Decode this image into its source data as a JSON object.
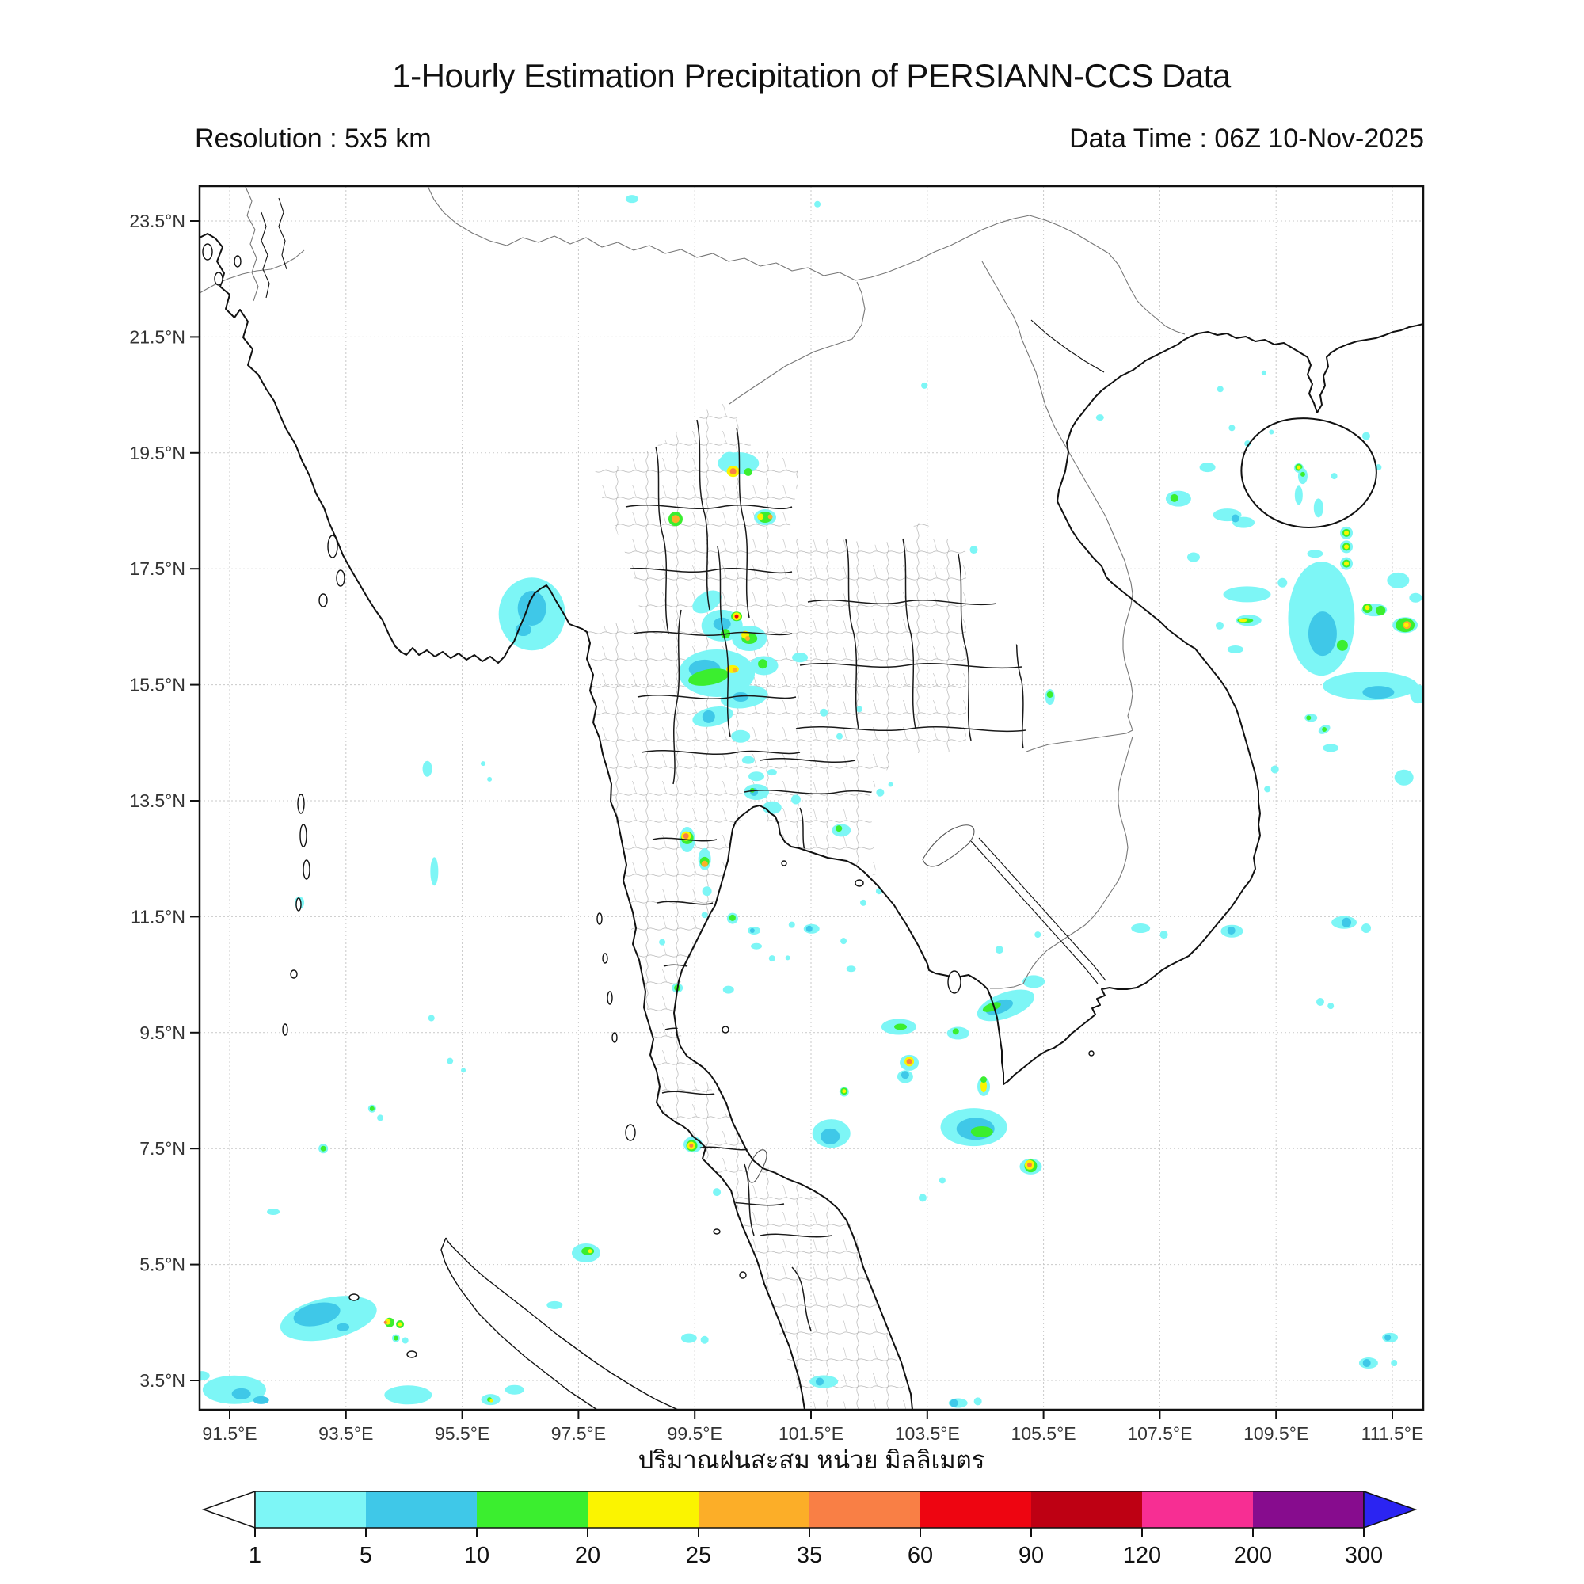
{
  "header": {
    "title": "1-Hourly Estimation Precipitation of PERSIANN-CCS Data",
    "resolution": "Resolution : 5x5 km",
    "datatime": "Data Time : 06Z 10-Nov-2025"
  },
  "footer": {
    "unit_label": "ปริมาณฝนสะสม หน่วย มิลลิเมตร"
  },
  "map": {
    "lon_ticks": [
      {
        "value": 91.5,
        "label": "91.5°E"
      },
      {
        "value": 93.5,
        "label": "93.5°E"
      },
      {
        "value": 95.5,
        "label": "95.5°E"
      },
      {
        "value": 97.5,
        "label": "97.5°E"
      },
      {
        "value": 99.5,
        "label": "99.5°E"
      },
      {
        "value": 101.5,
        "label": "101.5°E"
      },
      {
        "value": 103.5,
        "label": "103.5°E"
      },
      {
        "value": 105.5,
        "label": "105.5°E"
      },
      {
        "value": 107.5,
        "label": "107.5°E"
      },
      {
        "value": 109.5,
        "label": "109.5°E"
      },
      {
        "value": 111.5,
        "label": "111.5°E"
      }
    ],
    "lat_ticks": [
      {
        "value": 23.5,
        "label": "23.5°N"
      },
      {
        "value": 21.5,
        "label": "21.5°N"
      },
      {
        "value": 19.5,
        "label": "19.5°N"
      },
      {
        "value": 17.5,
        "label": "17.5°N"
      },
      {
        "value": 15.5,
        "label": "15.5°N"
      },
      {
        "value": 13.5,
        "label": "13.5°N"
      },
      {
        "value": 11.5,
        "label": "11.5°N"
      },
      {
        "value": 9.5,
        "label": "9.5°N"
      },
      {
        "value": 7.5,
        "label": "7.5°N"
      },
      {
        "value": 5.5,
        "label": "5.5°N"
      },
      {
        "value": 3.5,
        "label": "3.5°N"
      }
    ],
    "grid_color": "#c9c9c9",
    "frame_color": "#111111"
  },
  "colorbar": {
    "values": [
      1,
      5,
      10,
      20,
      25,
      35,
      60,
      90,
      120,
      200,
      300
    ],
    "colors": [
      "#7DF6F6",
      "#3FC8E8",
      "#3BEE2F",
      "#FBF400",
      "#FCAE28",
      "#F97F45",
      "#EE0511",
      "#BE0013",
      "#F72E93",
      "#870C8E"
    ],
    "under_color": "#ffffff",
    "over_color": "#2B24F2"
  },
  "palette": {
    "c1": "#7DF6F6",
    "c2": "#3FC8E8",
    "c3": "#3BEE2F",
    "c4": "#FBF400",
    "c5": "#FCAE28",
    "c6": "#F97F45",
    "c7": "#EE0511"
  },
  "precipitation": [
    [
      96.7,
      16.72,
      42,
      46,
      "c1"
    ],
    [
      96.7,
      16.82,
      18,
      22,
      "c2"
    ],
    [
      96.55,
      16.45,
      10,
      8,
      "c2"
    ],
    [
      94.9,
      14.05,
      6,
      10,
      "c1"
    ],
    [
      95.02,
      12.28,
      5,
      18,
      "c1"
    ],
    [
      92.7,
      11.74,
      6,
      8,
      "c1"
    ],
    [
      98.42,
      23.88,
      8,
      5,
      "c1"
    ],
    [
      101.61,
      23.79,
      4,
      4,
      "c1"
    ],
    [
      103.45,
      20.66,
      4,
      4,
      "c1"
    ],
    [
      100.25,
      19.32,
      26,
      14,
      "c1"
    ],
    [
      100.1,
      19.42,
      10,
      7,
      "c1"
    ],
    [
      100.16,
      19.18,
      8,
      7,
      "c4"
    ],
    [
      100.16,
      19.18,
      4,
      4,
      "c6"
    ],
    [
      100.42,
      19.17,
      5,
      5,
      "c3"
    ],
    [
      100.71,
      18.39,
      14,
      10,
      "c1"
    ],
    [
      100.71,
      18.39,
      9,
      7,
      "c3"
    ],
    [
      100.63,
      18.4,
      4,
      4,
      "c4"
    ],
    [
      100.8,
      18.4,
      3,
      3,
      "c5"
    ],
    [
      99.17,
      18.36,
      9,
      9,
      "c3"
    ],
    [
      99.17,
      18.36,
      5,
      5,
      "c5"
    ],
    [
      99.71,
      16.93,
      20,
      12,
      "c1",
      -30
    ],
    [
      99.97,
      16.52,
      26,
      20,
      "c1"
    ],
    [
      99.97,
      16.55,
      11,
      8,
      "c2"
    ],
    [
      100.03,
      16.38,
      6,
      6,
      "c3"
    ],
    [
      100.44,
      16.3,
      22,
      16,
      "c1"
    ],
    [
      100.44,
      16.3,
      10,
      7,
      "c3"
    ],
    [
      100.37,
      16.36,
      5,
      5,
      "c4"
    ],
    [
      100.41,
      16.3,
      3,
      3,
      "c5"
    ],
    [
      100.22,
      16.68,
      7,
      6,
      "c3"
    ],
    [
      100.22,
      16.68,
      5,
      5,
      "c4"
    ],
    [
      100.22,
      16.68,
      2.5,
      2.5,
      "c7"
    ],
    [
      99.88,
      15.7,
      48,
      30,
      "c1"
    ],
    [
      99.67,
      15.77,
      20,
      12,
      "c2"
    ],
    [
      99.74,
      15.63,
      26,
      10,
      "c3",
      -10
    ],
    [
      100.15,
      15.77,
      8,
      5,
      "c4"
    ],
    [
      100.19,
      15.75,
      3,
      3,
      "c5"
    ],
    [
      100.69,
      15.83,
      18,
      12,
      "c1"
    ],
    [
      100.67,
      15.86,
      6,
      6,
      "c3"
    ],
    [
      100.35,
      15.29,
      30,
      14,
      "c1",
      -8
    ],
    [
      100.29,
      15.29,
      10,
      6,
      "c2"
    ],
    [
      99.81,
      14.95,
      26,
      12,
      "c1",
      -12
    ],
    [
      99.74,
      14.95,
      8,
      8,
      "c2"
    ],
    [
      100.29,
      14.61,
      12,
      8,
      "c1"
    ],
    [
      101.31,
      15.97,
      10,
      6,
      "c1"
    ],
    [
      101.72,
      15.02,
      5,
      5,
      "c1"
    ],
    [
      101.99,
      14.61,
      4,
      4,
      "c1"
    ],
    [
      102.33,
      15.08,
      4,
      4,
      "c1"
    ],
    [
      102.87,
      13.78,
      3,
      3,
      "c1"
    ],
    [
      100.42,
      14.2,
      8,
      5,
      "c1"
    ],
    [
      100.56,
      13.92,
      10,
      6,
      "c1"
    ],
    [
      100.83,
      13.99,
      6,
      4,
      "c1"
    ],
    [
      100.56,
      13.65,
      16,
      10,
      "c1"
    ],
    [
      100.52,
      13.65,
      5,
      5,
      "c2"
    ],
    [
      100.49,
      13.68,
      3,
      3,
      "c3"
    ],
    [
      100.83,
      13.38,
      12,
      8,
      "c1"
    ],
    [
      101.24,
      13.52,
      6,
      6,
      "c1"
    ],
    [
      102.02,
      12.99,
      12,
      8,
      "c1"
    ],
    [
      101.98,
      13.02,
      4,
      4,
      "c3"
    ],
    [
      102.69,
      13.64,
      5,
      5,
      "c1"
    ],
    [
      105.61,
      15.29,
      6,
      10,
      "c1"
    ],
    [
      105.61,
      15.33,
      4,
      4,
      "c3"
    ],
    [
      104.3,
      17.83,
      5,
      5,
      "c1"
    ],
    [
      99.37,
      12.83,
      10,
      16,
      "c1"
    ],
    [
      99.37,
      12.86,
      8,
      8,
      "c3"
    ],
    [
      99.35,
      12.89,
      6,
      6,
      "c4"
    ],
    [
      99.35,
      12.89,
      3.5,
      3.5,
      "c6"
    ],
    [
      99.67,
      12.49,
      8,
      14,
      "c1"
    ],
    [
      99.67,
      12.45,
      6,
      6,
      "c3"
    ],
    [
      99.67,
      12.41,
      4,
      4,
      "c5"
    ],
    [
      99.71,
      11.94,
      6,
      6,
      "c1"
    ],
    [
      99.67,
      11.53,
      4,
      4,
      "c1"
    ],
    [
      100.15,
      11.47,
      7,
      7,
      "c1"
    ],
    [
      100.15,
      11.48,
      4,
      4,
      "c3"
    ],
    [
      100.52,
      11.26,
      8,
      5,
      "c1"
    ],
    [
      100.49,
      11.26,
      3,
      3,
      "c2"
    ],
    [
      100.56,
      10.99,
      7,
      4,
      "c1"
    ],
    [
      100.83,
      10.78,
      4,
      4,
      "c1"
    ],
    [
      101.17,
      11.36,
      4,
      4,
      "c1"
    ],
    [
      101.1,
      10.79,
      3,
      3,
      "c1"
    ],
    [
      101.51,
      11.29,
      10,
      6,
      "c1"
    ],
    [
      101.47,
      11.29,
      4,
      4,
      "c2"
    ],
    [
      102.06,
      11.08,
      4,
      4,
      "c1"
    ],
    [
      102.19,
      10.6,
      6,
      4,
      "c1"
    ],
    [
      98.94,
      11.06,
      4,
      4,
      "c1"
    ],
    [
      100.08,
      10.24,
      7,
      5,
      "c1"
    ],
    [
      99.2,
      10.27,
      7,
      6,
      "c1"
    ],
    [
      99.2,
      10.27,
      4,
      4,
      "c3"
    ],
    [
      94.97,
      9.75,
      4,
      4,
      "c1"
    ],
    [
      95.29,
      9.01,
      4,
      4,
      "c1"
    ],
    [
      95.52,
      8.85,
      3,
      3,
      "c1"
    ],
    [
      93.95,
      8.19,
      5,
      5,
      "c1"
    ],
    [
      93.95,
      8.19,
      3,
      3,
      "c3"
    ],
    [
      94.09,
      8.03,
      4,
      4,
      "c1"
    ],
    [
      93.11,
      7.5,
      6,
      6,
      "c1"
    ],
    [
      93.11,
      7.5,
      3.5,
      3.5,
      "c3"
    ],
    [
      92.25,
      6.41,
      8,
      4,
      "c1"
    ],
    [
      104.85,
      9.97,
      38,
      16,
      "c1",
      -20
    ],
    [
      104.74,
      9.94,
      18,
      8,
      "c2",
      -20
    ],
    [
      104.61,
      9.94,
      12,
      5,
      "c3",
      -20
    ],
    [
      105.33,
      10.38,
      14,
      8,
      "c1"
    ],
    [
      103.01,
      9.6,
      22,
      10,
      "c1"
    ],
    [
      103.04,
      9.6,
      8,
      4,
      "c3"
    ],
    [
      104.03,
      9.49,
      14,
      8,
      "c1"
    ],
    [
      103.99,
      9.52,
      4,
      4,
      "c3"
    ],
    [
      103.19,
      8.98,
      12,
      10,
      "c1"
    ],
    [
      103.19,
      9.0,
      6,
      6,
      "c4"
    ],
    [
      103.19,
      9.0,
      3.5,
      3.5,
      "c6"
    ],
    [
      103.12,
      8.74,
      10,
      8,
      "c1"
    ],
    [
      103.12,
      8.77,
      5,
      5,
      "c2"
    ],
    [
      104.47,
      8.57,
      8,
      12,
      "c1"
    ],
    [
      104.47,
      8.58,
      4,
      8,
      "c4"
    ],
    [
      104.47,
      8.69,
      4,
      4,
      "c3"
    ],
    [
      104.3,
      7.87,
      42,
      24,
      "c1"
    ],
    [
      104.33,
      7.84,
      24,
      14,
      "c2"
    ],
    [
      104.44,
      7.79,
      14,
      7,
      "c3"
    ],
    [
      105.28,
      7.19,
      14,
      10,
      "c1"
    ],
    [
      105.28,
      7.2,
      8,
      8,
      "c3"
    ],
    [
      105.26,
      7.22,
      6,
      6,
      "c4"
    ],
    [
      105.26,
      7.22,
      3,
      3,
      "c6"
    ],
    [
      101.85,
      7.76,
      24,
      18,
      "c1"
    ],
    [
      101.83,
      7.71,
      12,
      10,
      "c2"
    ],
    [
      102.07,
      8.48,
      6,
      6,
      "c1"
    ],
    [
      102.07,
      8.49,
      4.5,
      4.5,
      "c3"
    ],
    [
      102.07,
      8.49,
      2.5,
      2.5,
      "c4"
    ],
    [
      103.42,
      6.65,
      5,
      5,
      "c1"
    ],
    [
      103.76,
      6.95,
      4,
      4,
      "c1"
    ],
    [
      99.47,
      7.57,
      12,
      10,
      "c1"
    ],
    [
      99.45,
      7.55,
      7,
      7,
      "c3"
    ],
    [
      99.44,
      7.55,
      5,
      5,
      "c4"
    ],
    [
      99.44,
      7.55,
      2.5,
      2.5,
      "c6"
    ],
    [
      99.88,
      6.75,
      5,
      5,
      "c1"
    ],
    [
      97.63,
      5.7,
      18,
      12,
      "c1"
    ],
    [
      97.66,
      5.73,
      8,
      5,
      "c3"
    ],
    [
      97.7,
      5.73,
      2.5,
      2.5,
      "c4"
    ],
    [
      97.09,
      4.8,
      10,
      5,
      "c1"
    ],
    [
      93.2,
      4.57,
      62,
      26,
      "c1",
      -12
    ],
    [
      93.0,
      4.64,
      30,
      14,
      "c2",
      -12
    ],
    [
      93.45,
      4.42,
      8,
      5,
      "c2"
    ],
    [
      94.25,
      4.5,
      6,
      6,
      "c3"
    ],
    [
      94.22,
      4.51,
      3.5,
      3.5,
      "c4"
    ],
    [
      94.18,
      4.5,
      2,
      2,
      "c6"
    ],
    [
      94.43,
      4.47,
      5,
      5,
      "c3"
    ],
    [
      94.43,
      4.47,
      2.5,
      2.5,
      "c4"
    ],
    [
      94.36,
      4.23,
      5,
      5,
      "c1"
    ],
    [
      94.36,
      4.23,
      3,
      3,
      "c3"
    ],
    [
      94.52,
      4.19,
      4,
      4,
      "c1"
    ],
    [
      91.58,
      3.34,
      40,
      18,
      "c1"
    ],
    [
      91.7,
      3.27,
      12,
      7,
      "c2"
    ],
    [
      92.04,
      3.16,
      10,
      5,
      "c2"
    ],
    [
      91.02,
      3.58,
      10,
      6,
      "c1"
    ],
    [
      94.57,
      3.25,
      30,
      12,
      "c1"
    ],
    [
      95.99,
      3.17,
      12,
      7,
      "c1"
    ],
    [
      95.97,
      3.17,
      3,
      3,
      "c3"
    ],
    [
      96.0,
      3.15,
      2,
      2,
      "c4"
    ],
    [
      96.4,
      3.34,
      12,
      6,
      "c1"
    ],
    [
      99.4,
      4.23,
      10,
      6,
      "c1"
    ],
    [
      99.67,
      4.2,
      5,
      5,
      "c1"
    ],
    [
      101.72,
      3.48,
      18,
      8,
      "c1"
    ],
    [
      101.65,
      3.48,
      5,
      5,
      "c2"
    ],
    [
      104.03,
      3.11,
      12,
      6,
      "c1"
    ],
    [
      103.96,
      3.11,
      5,
      5,
      "c2"
    ],
    [
      104.37,
      3.14,
      5,
      5,
      "c1"
    ],
    [
      107.82,
      18.71,
      16,
      10,
      "c1"
    ],
    [
      107.75,
      18.72,
      5,
      5,
      "c3"
    ],
    [
      108.66,
      18.43,
      18,
      8,
      "c1"
    ],
    [
      108.94,
      18.3,
      14,
      7,
      "c1"
    ],
    [
      108.8,
      18.37,
      5,
      5,
      "c2"
    ],
    [
      108.32,
      19.25,
      10,
      6,
      "c1"
    ],
    [
      108.08,
      17.7,
      8,
      6,
      "c1"
    ],
    [
      109.89,
      19.24,
      6,
      6,
      "c1"
    ],
    [
      109.89,
      19.25,
      4.5,
      4.5,
      "c3"
    ],
    [
      109.89,
      19.25,
      2.5,
      2.5,
      "c4"
    ],
    [
      109.89,
      18.77,
      5,
      12,
      "c1"
    ],
    [
      110.71,
      18.12,
      8,
      8,
      "c1"
    ],
    [
      110.71,
      18.12,
      5,
      5,
      "c3"
    ],
    [
      110.71,
      18.12,
      3,
      3,
      "c4"
    ],
    [
      110.71,
      17.88,
      8,
      8,
      "c1"
    ],
    [
      110.71,
      17.88,
      5,
      5,
      "c3"
    ],
    [
      110.71,
      17.88,
      3,
      3,
      "c4"
    ],
    [
      110.71,
      17.59,
      8,
      8,
      "c1"
    ],
    [
      110.71,
      17.59,
      5,
      5,
      "c3"
    ],
    [
      110.71,
      17.59,
      3,
      3,
      "c4"
    ],
    [
      110.17,
      17.76,
      10,
      5,
      "c1"
    ],
    [
      110.28,
      16.64,
      42,
      72,
      "c1"
    ],
    [
      110.3,
      16.38,
      18,
      28,
      "c2"
    ],
    [
      110.64,
      16.18,
      7,
      7,
      "c3"
    ],
    [
      109.0,
      17.06,
      30,
      10,
      "c1"
    ],
    [
      109.03,
      16.61,
      16,
      7,
      "c1"
    ],
    [
      108.97,
      16.61,
      10,
      3,
      "c3"
    ],
    [
      108.93,
      16.61,
      5,
      2,
      "c4"
    ],
    [
      109.61,
      17.26,
      6,
      6,
      "c1"
    ],
    [
      108.53,
      16.52,
      5,
      5,
      "c1"
    ],
    [
      108.8,
      16.11,
      10,
      5,
      "c1"
    ],
    [
      111.19,
      16.79,
      16,
      8,
      "c1"
    ],
    [
      111.07,
      16.82,
      6,
      6,
      "c3"
    ],
    [
      111.07,
      16.83,
      3,
      3,
      "c4"
    ],
    [
      111.3,
      16.78,
      6,
      6,
      "c3"
    ],
    [
      111.72,
      16.53,
      16,
      10,
      "c1"
    ],
    [
      111.72,
      16.53,
      12,
      9,
      "c3"
    ],
    [
      111.75,
      16.53,
      5,
      5,
      "c5"
    ],
    [
      111.74,
      16.53,
      3,
      3,
      "c4"
    ],
    [
      111.6,
      17.3,
      14,
      10,
      "c1"
    ],
    [
      111.9,
      17.0,
      8,
      6,
      "c1"
    ],
    [
      111.12,
      15.48,
      60,
      18,
      "c1"
    ],
    [
      111.26,
      15.37,
      20,
      8,
      "c2"
    ],
    [
      111.94,
      15.34,
      10,
      12,
      "c1"
    ],
    [
      110.1,
      14.93,
      8,
      5,
      "c1"
    ],
    [
      110.06,
      14.93,
      3,
      3,
      "c3"
    ],
    [
      110.33,
      14.73,
      8,
      5,
      "c1",
      -30
    ],
    [
      110.33,
      14.73,
      3,
      3,
      "c3"
    ],
    [
      110.44,
      14.41,
      10,
      5,
      "c1"
    ],
    [
      109.48,
      14.04,
      5,
      5,
      "c1"
    ],
    [
      109.35,
      13.7,
      4,
      4,
      "c1"
    ],
    [
      111.7,
      13.9,
      12,
      10,
      "c1"
    ],
    [
      108.74,
      19.93,
      4,
      4,
      "c1"
    ],
    [
      109.01,
      19.66,
      4,
      4,
      "c1"
    ],
    [
      109.42,
      19.86,
      3,
      3,
      "c1"
    ],
    [
      109.96,
      19.1,
      6,
      10,
      "c1"
    ],
    [
      109.96,
      19.13,
      3,
      3,
      "c3"
    ],
    [
      110.23,
      18.55,
      6,
      12,
      "c1"
    ],
    [
      110.5,
      19.1,
      4,
      4,
      "c1"
    ],
    [
      111.05,
      19.79,
      5,
      5,
      "c1"
    ],
    [
      111.26,
      19.25,
      4,
      4,
      "c1"
    ],
    [
      108.54,
      20.6,
      4,
      4,
      "c1"
    ],
    [
      109.29,
      20.88,
      3,
      3,
      "c1"
    ],
    [
      106.47,
      20.11,
      5,
      4,
      "c1"
    ],
    [
      110.67,
      11.4,
      16,
      8,
      "c1"
    ],
    [
      110.71,
      11.4,
      6,
      6,
      "c2"
    ],
    [
      111.05,
      11.3,
      6,
      6,
      "c1"
    ],
    [
      107.17,
      11.3,
      12,
      6,
      "c1"
    ],
    [
      107.57,
      11.19,
      5,
      5,
      "c1"
    ],
    [
      108.74,
      11.25,
      14,
      8,
      "c1"
    ],
    [
      108.73,
      11.26,
      5,
      5,
      "c2"
    ],
    [
      110.26,
      10.03,
      5,
      5,
      "c1"
    ],
    [
      110.44,
      9.96,
      4,
      4,
      "c1"
    ],
    [
      111.46,
      4.24,
      10,
      6,
      "c1"
    ],
    [
      111.42,
      4.24,
      4,
      4,
      "c2"
    ],
    [
      111.09,
      3.8,
      12,
      7,
      "c1"
    ],
    [
      111.06,
      3.8,
      5,
      5,
      "c2"
    ],
    [
      111.53,
      3.8,
      4,
      4,
      "c1"
    ],
    [
      104.74,
      10.93,
      5,
      5,
      "c1"
    ],
    [
      105.4,
      11.19,
      4,
      4,
      "c1"
    ],
    [
      102.4,
      11.74,
      4,
      4,
      "c1"
    ],
    [
      102.67,
      11.94,
      4,
      4,
      "c1"
    ],
    [
      95.86,
      14.14,
      3,
      3,
      "c1"
    ],
    [
      95.97,
      13.87,
      3,
      3,
      "c1"
    ]
  ]
}
